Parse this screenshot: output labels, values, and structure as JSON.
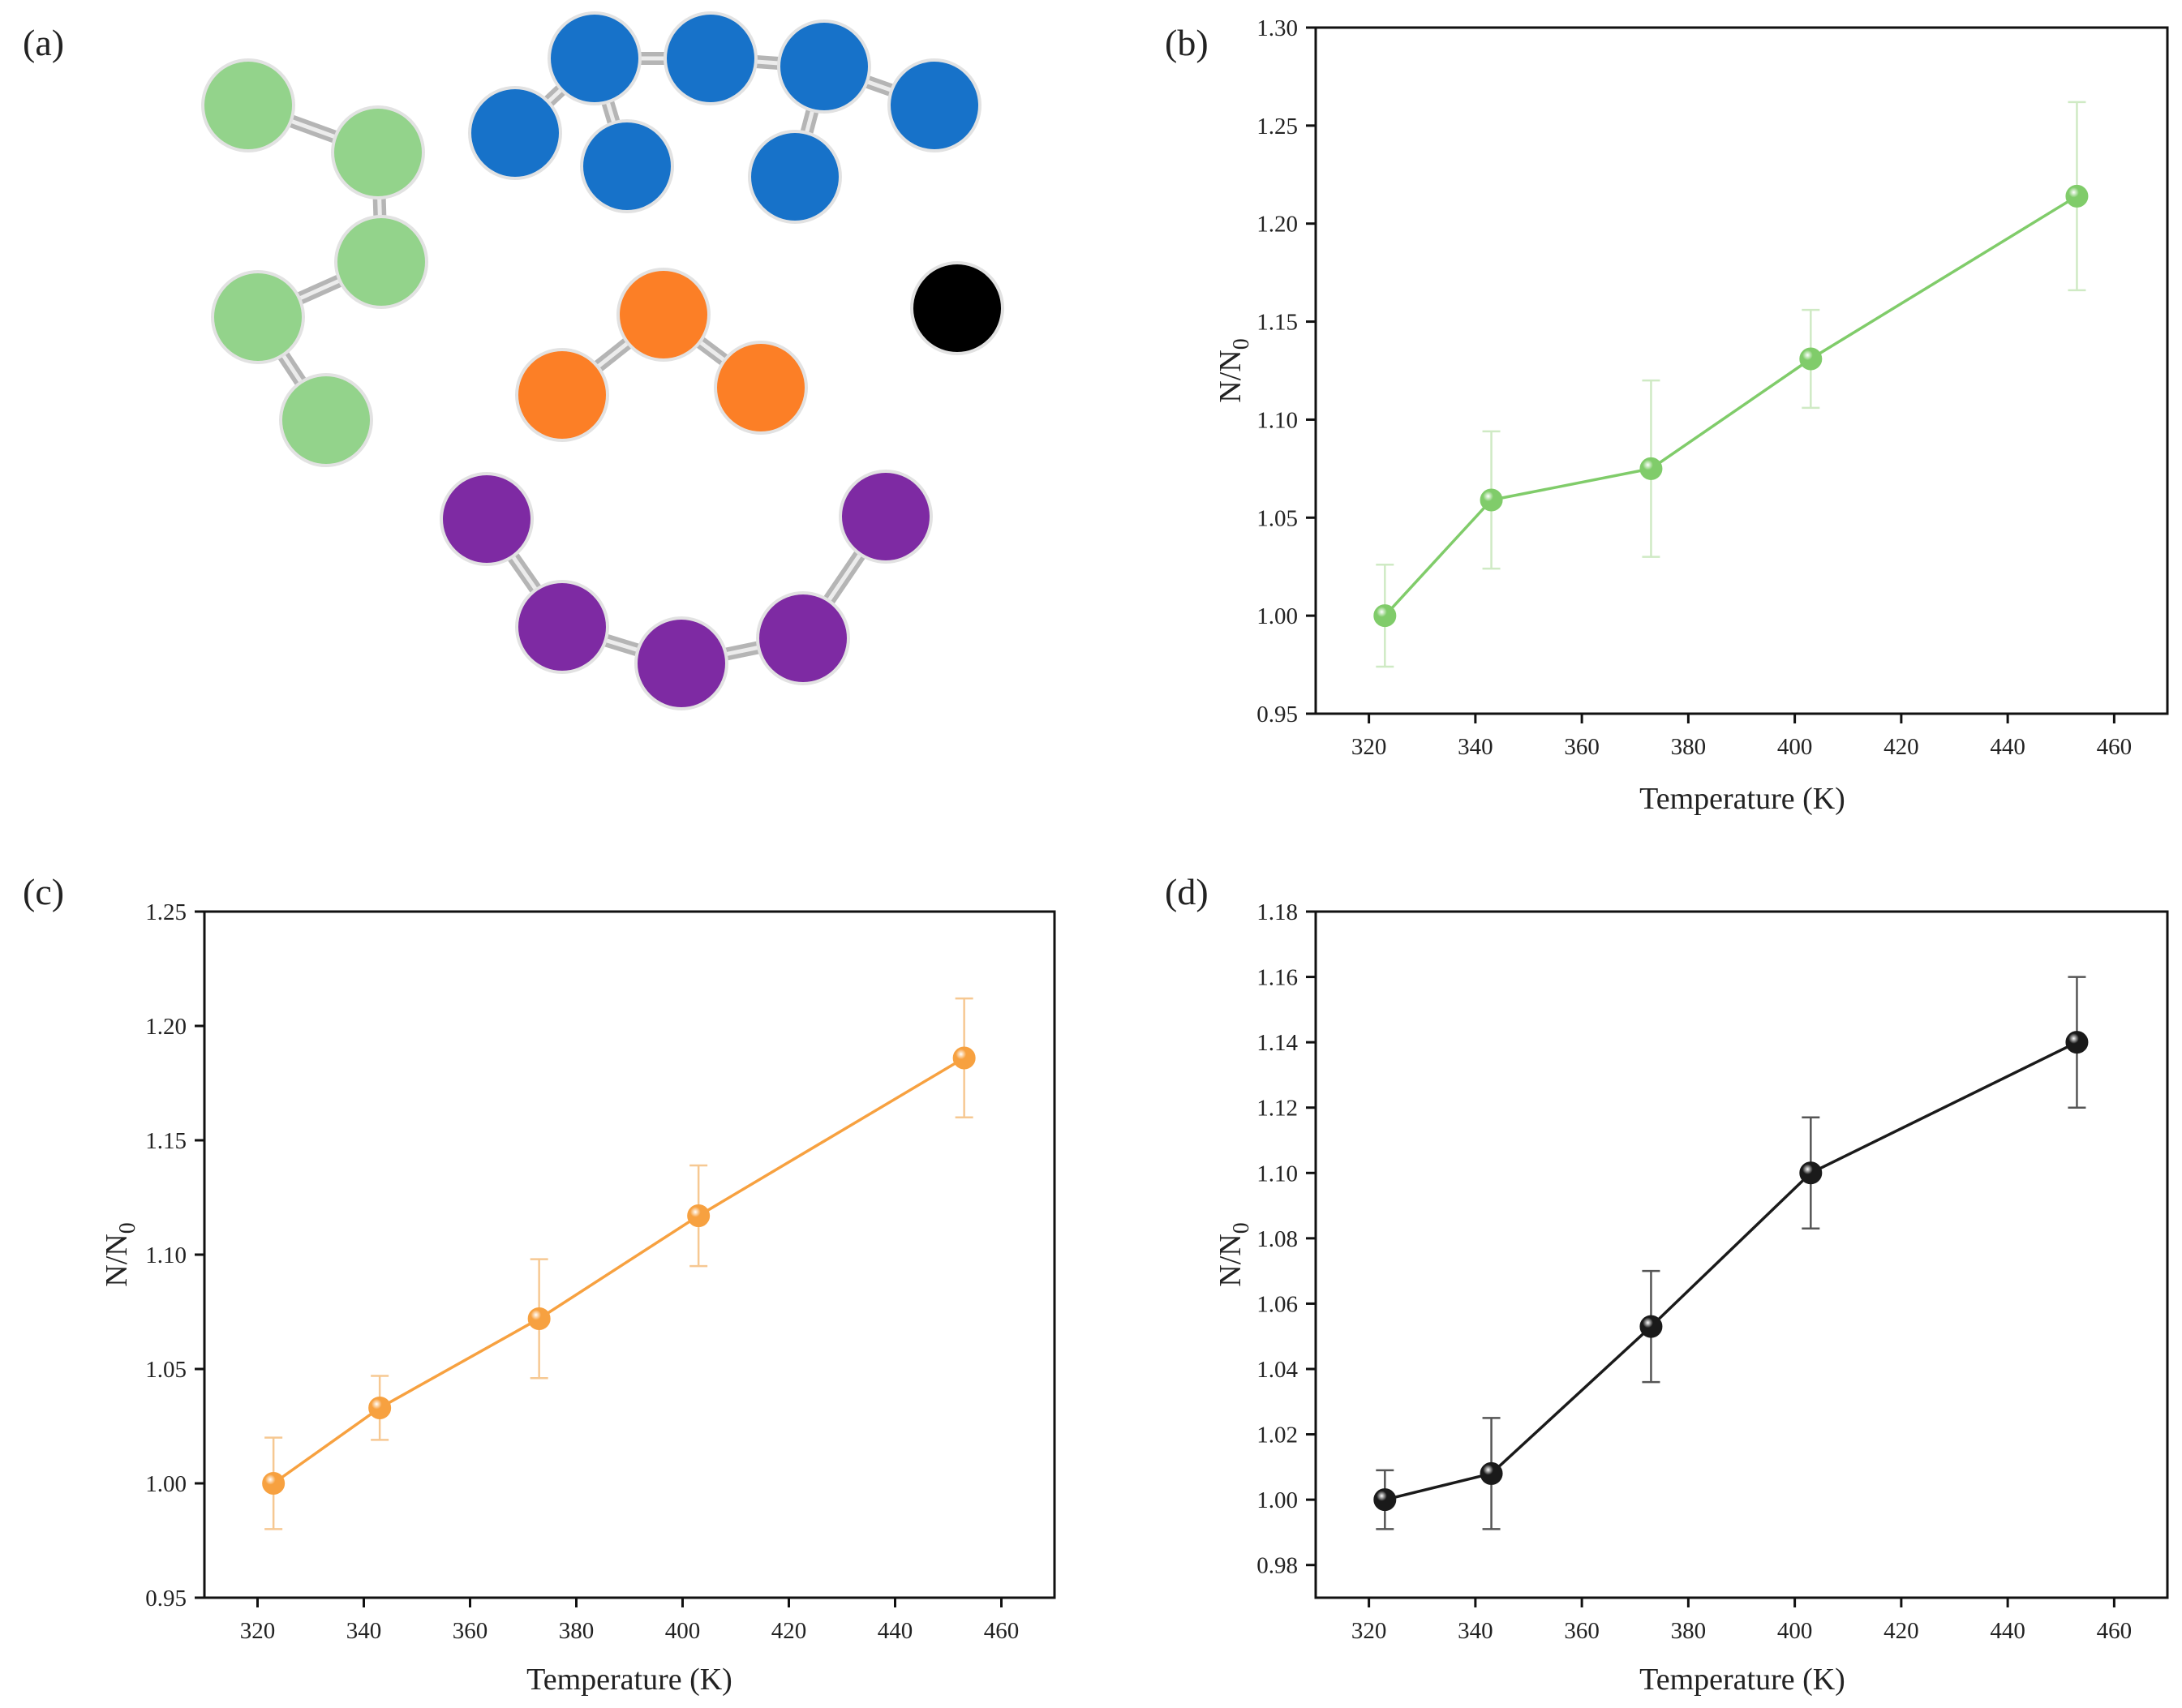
{
  "panels": {
    "a": {
      "label": "(a)"
    },
    "b": {
      "label": "(b)"
    },
    "c": {
      "label": "(c)"
    },
    "d": {
      "label": "(d)"
    }
  },
  "molecules": {
    "green": {
      "color": "#93d38b"
    },
    "blue": {
      "color": "#1772c9"
    },
    "orange": {
      "color": "#fc7f26"
    },
    "purple": {
      "color": "#7e2aa3"
    },
    "black": {
      "color": "#000000"
    },
    "bond_color": "#b5b5b5",
    "outline_color": "#e2e2e2"
  },
  "chart_data": [
    {
      "panel": "b",
      "type": "line",
      "color": "#80cc6a",
      "errbar_color": "#cfeac4",
      "xlabel": "Temperature (K)",
      "ylabel": "N/N0",
      "ylabel_main": "N/N",
      "ylabel_sub": "0",
      "xlim": [
        310,
        470
      ],
      "ylim": [
        0.95,
        1.3
      ],
      "xticks": [
        320,
        340,
        360,
        380,
        400,
        420,
        440,
        460
      ],
      "xtick_labels": [
        "320",
        "340",
        "360",
        "380",
        "400",
        "420",
        "440",
        "460"
      ],
      "yticks": [
        0.95,
        1.0,
        1.05,
        1.1,
        1.15,
        1.2,
        1.25,
        1.3
      ],
      "ytick_labels": [
        "0.95",
        "1.00",
        "1.05",
        "1.10",
        "1.15",
        "1.20",
        "1.25",
        "1.30"
      ],
      "x": [
        323,
        343,
        373,
        403,
        453
      ],
      "y": [
        1.0,
        1.059,
        1.075,
        1.131,
        1.214
      ],
      "err": [
        0.026,
        0.035,
        0.045,
        0.025,
        0.048
      ]
    },
    {
      "panel": "c",
      "type": "line",
      "color": "#f7a140",
      "errbar_color": "#f6c892",
      "xlabel": "Temperature (K)",
      "ylabel": "N/N0",
      "ylabel_main": "N/N",
      "ylabel_sub": "0",
      "xlim": [
        310,
        470
      ],
      "ylim": [
        0.95,
        1.25
      ],
      "xticks": [
        320,
        340,
        360,
        380,
        400,
        420,
        440,
        460
      ],
      "xtick_labels": [
        "320",
        "340",
        "360",
        "380",
        "400",
        "420",
        "440",
        "460"
      ],
      "yticks": [
        0.95,
        1.0,
        1.05,
        1.1,
        1.15,
        1.2,
        1.25
      ],
      "ytick_labels": [
        "0.95",
        "1.00",
        "1.05",
        "1.10",
        "1.15",
        "1.20",
        "1.25"
      ],
      "x": [
        323,
        343,
        373,
        403,
        453
      ],
      "y": [
        1.0,
        1.033,
        1.072,
        1.117,
        1.186
      ],
      "err": [
        0.02,
        0.014,
        0.026,
        0.022,
        0.026
      ]
    },
    {
      "panel": "d",
      "type": "line",
      "color": "#1a1a1a",
      "errbar_color": "#555555",
      "xlabel": "Temperature (K)",
      "ylabel": "N/N0",
      "ylabel_main": "N/N",
      "ylabel_sub": "0",
      "xlim": [
        310,
        470
      ],
      "ylim": [
        0.97,
        1.18
      ],
      "xticks": [
        320,
        340,
        360,
        380,
        400,
        420,
        440,
        460
      ],
      "xtick_labels": [
        "320",
        "340",
        "360",
        "380",
        "400",
        "420",
        "440",
        "460"
      ],
      "yticks": [
        0.98,
        1.0,
        1.02,
        1.04,
        1.06,
        1.08,
        1.1,
        1.12,
        1.14,
        1.16,
        1.18
      ],
      "ytick_labels": [
        "0.98",
        "1.00",
        "1.02",
        "1.04",
        "1.06",
        "1.08",
        "1.10",
        "1.12",
        "1.14",
        "1.16",
        "1.18"
      ],
      "x": [
        323,
        343,
        373,
        403,
        453
      ],
      "y": [
        1.0,
        1.008,
        1.053,
        1.1,
        1.14
      ],
      "err": [
        0.009,
        0.017,
        0.017,
        0.017,
        0.02
      ]
    }
  ]
}
